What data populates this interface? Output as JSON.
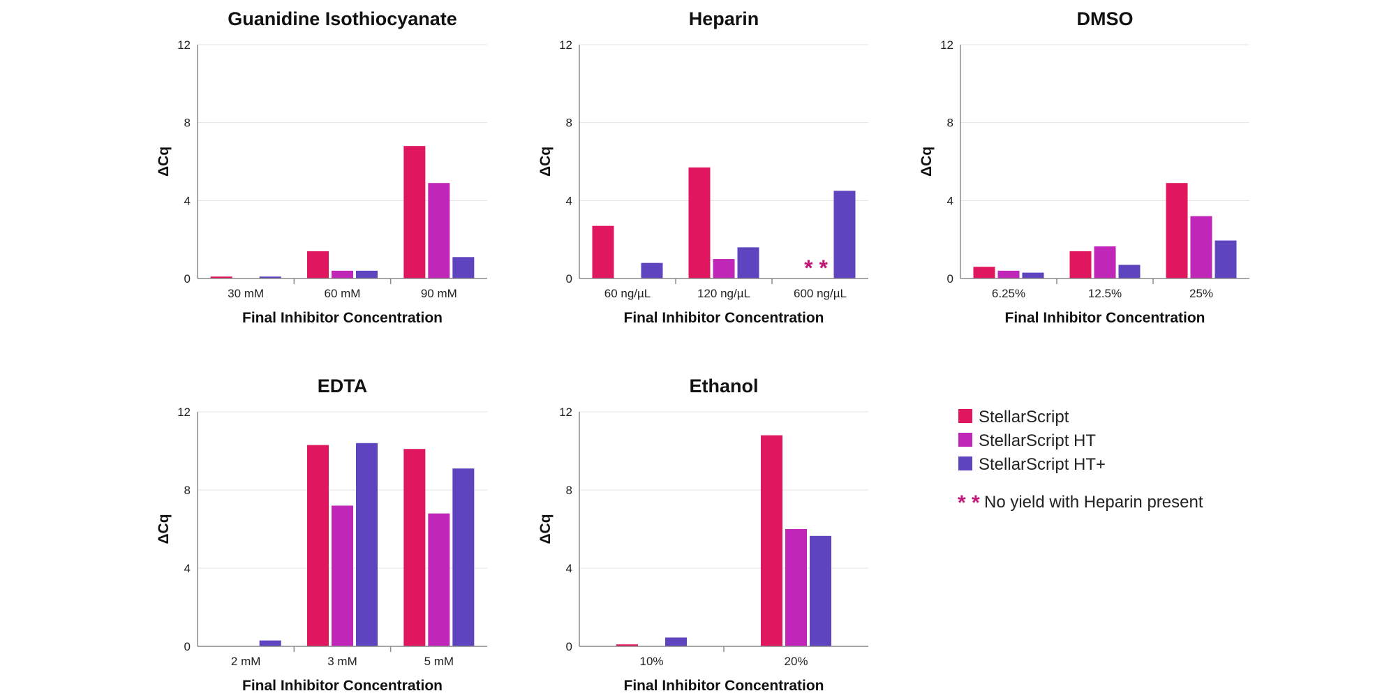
{
  "colors": {
    "StellarScript": "#e0165f",
    "StellarScript HT": "#c027b9",
    "StellarScript HT+": "#5e44be",
    "note_marker": "#c2177a"
  },
  "legend": {
    "items": [
      "StellarScript",
      "StellarScript HT",
      "StellarScript HT+"
    ],
    "note_marker": "* *",
    "note": "No yield with Heparin present"
  },
  "chart_data": [
    {
      "type": "bar",
      "title": "Guanidine Isothiocyanate",
      "xlabel": "Final Inhibitor Concentration",
      "ylabel": "ΔCq",
      "ylim": [
        0,
        12
      ],
      "yticks": [
        0,
        4,
        8,
        12
      ],
      "categories": [
        "30 mM",
        "60 mM",
        "90 mM"
      ],
      "series": [
        {
          "name": "StellarScript",
          "values": [
            0.1,
            1.4,
            6.8
          ]
        },
        {
          "name": "StellarScript HT",
          "values": [
            0,
            0.4,
            4.9
          ]
        },
        {
          "name": "StellarScript HT+",
          "values": [
            0.1,
            0.4,
            1.1
          ]
        }
      ]
    },
    {
      "type": "bar",
      "title": "Heparin",
      "xlabel": "Final Inhibitor Concentration",
      "ylabel": "ΔCq",
      "ylim": [
        0,
        12
      ],
      "yticks": [
        0,
        4,
        8,
        12
      ],
      "categories": [
        "60 ng/µL",
        "120 ng/µL",
        "600 ng/µL"
      ],
      "series": [
        {
          "name": "StellarScript",
          "values": [
            2.7,
            5.7,
            null
          ]
        },
        {
          "name": "StellarScript HT",
          "values": [
            0,
            1.0,
            null
          ]
        },
        {
          "name": "StellarScript HT+",
          "values": [
            0.8,
            1.6,
            4.5
          ]
        }
      ],
      "annotations": [
        {
          "category": "600 ng/µL",
          "text": "* *"
        }
      ]
    },
    {
      "type": "bar",
      "title": "DMSO",
      "xlabel": "Final Inhibitor Concentration",
      "ylabel": "ΔCq",
      "ylim": [
        0,
        12
      ],
      "yticks": [
        0,
        4,
        8,
        12
      ],
      "categories": [
        "6.25%",
        "12.5%",
        "25%"
      ],
      "series": [
        {
          "name": "StellarScript",
          "values": [
            0.6,
            1.4,
            4.9
          ]
        },
        {
          "name": "StellarScript HT",
          "values": [
            0.4,
            1.65,
            3.2
          ]
        },
        {
          "name": "StellarScript HT+",
          "values": [
            0.3,
            0.7,
            1.95
          ]
        }
      ]
    },
    {
      "type": "bar",
      "title": "EDTA",
      "xlabel": "Final Inhibitor Concentration",
      "ylabel": "ΔCq",
      "ylim": [
        0,
        12
      ],
      "yticks": [
        0,
        4,
        8,
        12
      ],
      "categories": [
        "2 mM",
        "3 mM",
        "5 mM"
      ],
      "series": [
        {
          "name": "StellarScript",
          "values": [
            0,
            10.3,
            10.1
          ]
        },
        {
          "name": "StellarScript HT",
          "values": [
            0,
            7.2,
            6.8
          ]
        },
        {
          "name": "StellarScript HT+",
          "values": [
            0.3,
            10.4,
            9.1
          ]
        }
      ]
    },
    {
      "type": "bar",
      "title": "Ethanol",
      "xlabel": "Final Inhibitor Concentration",
      "ylabel": "ΔCq",
      "ylim": [
        0,
        12
      ],
      "yticks": [
        0,
        4,
        8,
        12
      ],
      "categories": [
        "10%",
        "20%"
      ],
      "series": [
        {
          "name": "StellarScript",
          "values": [
            0.1,
            10.8
          ]
        },
        {
          "name": "StellarScript HT",
          "values": [
            0,
            6.0
          ]
        },
        {
          "name": "StellarScript HT+",
          "values": [
            0.45,
            5.65
          ]
        }
      ]
    }
  ]
}
